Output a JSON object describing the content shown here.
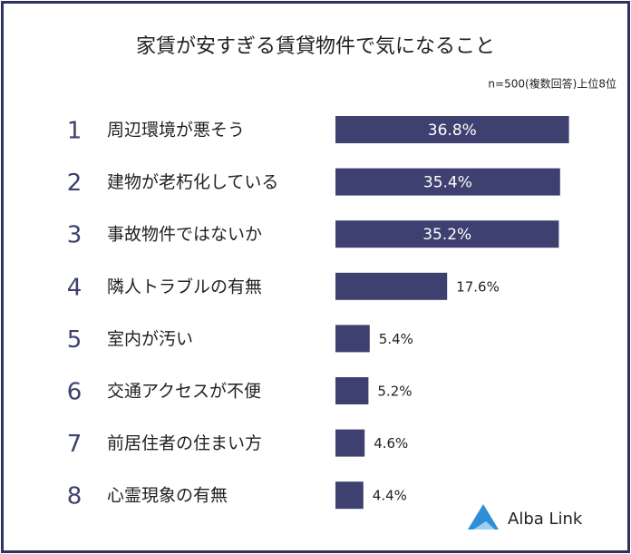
{
  "chart_data": {
    "type": "bar",
    "orientation": "horizontal",
    "title": "家賃が安すぎる賃貸物件で気になること",
    "subtitle": "n=500(複数回答)上位8位",
    "ranks": [
      1,
      2,
      3,
      4,
      5,
      6,
      7,
      8
    ],
    "categories": [
      "周辺環境が悪そう",
      "建物が老朽化している",
      "事故物件ではないか",
      "隣人トラブルの有無",
      "室内が汚い",
      "交通アクセスが不便",
      "前居住者の住まい方",
      "心霊現象の有無"
    ],
    "values": [
      36.8,
      35.4,
      35.2,
      17.6,
      5.4,
      5.2,
      4.6,
      4.4
    ],
    "value_labels": [
      "36.8%",
      "35.4%",
      "35.2%",
      "17.6%",
      "5.4%",
      "5.2%",
      "4.6%",
      "4.4%"
    ],
    "color": "#3e4170"
  },
  "logo": {
    "text": "Alba Link"
  }
}
